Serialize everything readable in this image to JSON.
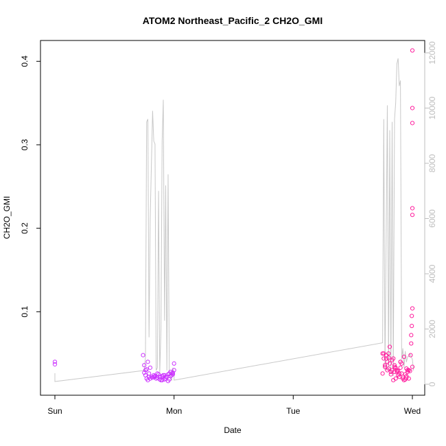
{
  "chart_data": {
    "type": "scatter",
    "title": "ATOM2 Northeast_Pacific_2 CH2O_GMI",
    "xlabel": "Date",
    "ylabel": "CH2O_GMI",
    "x_ticks": [
      "Sun",
      "Mon",
      "Tue",
      "Wed"
    ],
    "x_range_days": [
      -0.1,
      3.1
    ],
    "ylim": [
      0,
      0.42
    ],
    "y_ticks": [
      0.1,
      0.2,
      0.3,
      0.4
    ],
    "y2lim": [
      -300,
      12300
    ],
    "y2_ticks": [
      0,
      2000,
      4000,
      6000,
      8000,
      10000,
      12000
    ],
    "colors": {
      "altitude_line": "#c8c8c8",
      "points_low": "#cc33ff",
      "points_high": "#ff1a9c",
      "axis": "#000000",
      "right_axis": "#bdbdbd"
    },
    "altitude_series": {
      "name": "",
      "x_days": [
        0.0,
        0.0,
        0.75,
        0.76,
        0.77,
        0.78,
        0.79,
        0.8,
        0.82,
        0.83,
        0.84,
        0.85,
        0.86,
        0.87,
        0.88,
        0.89,
        0.9,
        0.91,
        0.92,
        0.93,
        0.94,
        0.95,
        0.96,
        0.97,
        0.98,
        0.99,
        1.0,
        1.0,
        2.75,
        2.76,
        2.77,
        2.79,
        2.8,
        2.81,
        2.82,
        2.83,
        2.84,
        2.85,
        2.86,
        2.87,
        2.88,
        2.89,
        2.9,
        2.91,
        2.92,
        2.93,
        2.94,
        2.95,
        2.96,
        2.97,
        2.98,
        2.99,
        3.0,
        3.01
      ],
      "y_alt": [
        400,
        100,
        500,
        1000,
        9500,
        9600,
        1700,
        6000,
        9900,
        8800,
        8700,
        500,
        600,
        7000,
        400,
        2000,
        8800,
        10300,
        2300,
        7200,
        500,
        7600,
        400,
        200,
        150,
        600,
        300,
        150,
        1500,
        9600,
        500,
        10100,
        500,
        9200,
        400,
        9500,
        300,
        9600,
        10200,
        11600,
        11800,
        10800,
        11000,
        900,
        1300,
        600,
        1200,
        800,
        1000,
        1000,
        1100,
        1000,
        900,
        500
      ]
    },
    "series": [
      {
        "name": "",
        "x_days": [
          0.0,
          0.0,
          0.74,
          0.75,
          0.76,
          0.77,
          0.78,
          0.79,
          0.8,
          0.81,
          0.82,
          0.83,
          0.84,
          0.85,
          0.86,
          0.87,
          0.88,
          0.89,
          0.9,
          0.91,
          0.92,
          0.93,
          0.94,
          0.95,
          0.96,
          0.97,
          0.98,
          0.99,
          1.0,
          0.78,
          0.8,
          0.83,
          0.86,
          0.9,
          0.93,
          0.95,
          0.97,
          0.99,
          0.76,
          0.84,
          0.88,
          0.92,
          0.96,
          0.98,
          1.0,
          0.75,
          0.77,
          0.79
        ],
        "y": [
          0.04,
          0.037,
          0.048,
          0.036,
          0.024,
          0.02,
          0.018,
          0.022,
          0.02,
          0.022,
          0.021,
          0.024,
          0.022,
          0.02,
          0.021,
          0.025,
          0.019,
          0.018,
          0.023,
          0.024,
          0.019,
          0.02,
          0.022,
          0.025,
          0.026,
          0.028,
          0.024,
          0.027,
          0.038,
          0.04,
          0.033,
          0.022,
          0.026,
          0.018,
          0.022,
          0.017,
          0.023,
          0.025,
          0.03,
          0.023,
          0.022,
          0.024,
          0.019,
          0.026,
          0.03,
          0.027,
          0.031,
          0.026
        ]
      },
      {
        "name": "",
        "x_days": [
          2.75,
          2.76,
          2.77,
          2.78,
          2.79,
          2.8,
          2.81,
          2.82,
          2.83,
          2.84,
          2.85,
          2.86,
          2.87,
          2.88,
          2.89,
          2.9,
          2.91,
          2.92,
          2.93,
          2.94,
          2.95,
          2.96,
          2.97,
          2.98,
          2.985,
          2.99,
          2.99,
          2.995,
          2.995,
          3.0,
          3.0,
          3.0,
          3.0,
          2.76,
          2.78,
          2.8,
          2.82,
          2.84,
          2.86,
          2.88,
          2.9,
          2.92,
          2.94,
          2.96,
          2.77,
          2.79,
          2.81,
          2.83,
          2.85,
          2.87,
          2.89,
          2.91,
          2.93,
          2.95,
          2.97,
          2.75,
          2.8,
          2.85,
          2.9,
          2.95
        ],
        "y": [
          0.05,
          0.044,
          0.034,
          0.048,
          0.04,
          0.045,
          0.038,
          0.028,
          0.03,
          0.044,
          0.036,
          0.033,
          0.028,
          0.024,
          0.022,
          0.04,
          0.026,
          0.02,
          0.018,
          0.019,
          0.021,
          0.03,
          0.03,
          0.029,
          0.048,
          0.062,
          0.072,
          0.083,
          0.095,
          0.104,
          0.216,
          0.326,
          0.413,
          0.05,
          0.044,
          0.032,
          0.025,
          0.018,
          0.02,
          0.029,
          0.033,
          0.022,
          0.025,
          0.028,
          0.036,
          0.03,
          0.058,
          0.042,
          0.034,
          0.03,
          0.026,
          0.038,
          0.046,
          0.023,
          0.02,
          0.026,
          0.05,
          0.028,
          0.04,
          0.032
        ]
      }
    ],
    "extra_high_points": {
      "x_days": [
        3.0,
        3.0,
        3.0
      ],
      "y": [
        0.224,
        0.344,
        0.034
      ]
    }
  }
}
